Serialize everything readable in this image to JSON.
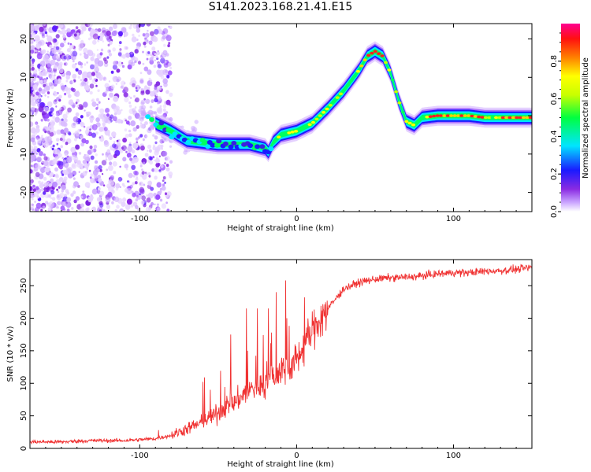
{
  "title": "S141.2023.168.21.41.E15",
  "chart_data": [
    {
      "type": "heatmap",
      "xlabel": "Height of straight line (km)",
      "ylabel": "Frequency (Hz)",
      "xlim": [
        -170,
        150
      ],
      "ylim": [
        -25,
        24
      ],
      "xticks": [
        -100,
        0,
        100
      ],
      "yticks": [
        -20,
        -10,
        0,
        10,
        20
      ],
      "colorbar": {
        "label": "Normalized spectral amplitude",
        "range": [
          0,
          1
        ],
        "ticks": [
          "0.0",
          "0.2",
          "0.4",
          "0.6",
          "0.8"
        ]
      },
      "ridge": {
        "x": [
          -100,
          -90,
          -80,
          -70,
          -60,
          -50,
          -40,
          -30,
          -20,
          -18,
          -15,
          -10,
          -5,
          0,
          10,
          20,
          30,
          40,
          45,
          50,
          55,
          60,
          65,
          70,
          75,
          80,
          90,
          100,
          110,
          120,
          130,
          140,
          150
        ],
        "y": [
          1,
          -2,
          -4,
          -6.5,
          -7,
          -7.5,
          -7.5,
          -7.5,
          -8.5,
          -9.5,
          -7,
          -5,
          -4.5,
          -4,
          -2,
          2,
          6.5,
          12,
          15.5,
          16.8,
          15.5,
          11,
          4,
          -1.5,
          -2.5,
          -0.5,
          0,
          0,
          0,
          -0.5,
          -0.5,
          -0.5,
          -0.5
        ]
      }
    },
    {
      "type": "line",
      "xlabel": "Height of straight line (km)",
      "ylabel": "SNR (10 * v/v)",
      "xlim": [
        -170,
        150
      ],
      "ylim": [
        0,
        290
      ],
      "xticks": [
        -100,
        0,
        100
      ],
      "yticks": [
        0,
        50,
        100,
        150,
        200,
        250
      ],
      "color": "#f03232",
      "series": [
        {
          "x": [
            -170,
            -150,
            -130,
            -110,
            -90,
            -80,
            -70,
            -60,
            -50,
            -45,
            -40,
            -35,
            -30,
            -25,
            -20,
            -15,
            -10,
            -5,
            0,
            5,
            10,
            15,
            20,
            25,
            30,
            40,
            50,
            60,
            70,
            80,
            90,
            100,
            110,
            120,
            130,
            140,
            150
          ],
          "values": [
            10,
            10,
            12,
            12,
            15,
            20,
            30,
            40,
            55,
            65,
            70,
            80,
            90,
            95,
            100,
            110,
            120,
            125,
            135,
            160,
            180,
            200,
            215,
            230,
            245,
            255,
            260,
            262,
            263,
            265,
            268,
            270,
            270,
            272,
            273,
            275,
            278
          ]
        }
      ],
      "spikes": [
        {
          "x": -88,
          "y": 28
        },
        {
          "x": -55,
          "y": 90
        },
        {
          "x": -42,
          "y": 175
        },
        {
          "x": -32,
          "y": 215
        },
        {
          "x": -25,
          "y": 215
        },
        {
          "x": -18,
          "y": 215
        },
        {
          "x": -13,
          "y": 240
        },
        {
          "x": -7,
          "y": 258
        },
        {
          "x": 5,
          "y": 232
        }
      ]
    }
  ]
}
